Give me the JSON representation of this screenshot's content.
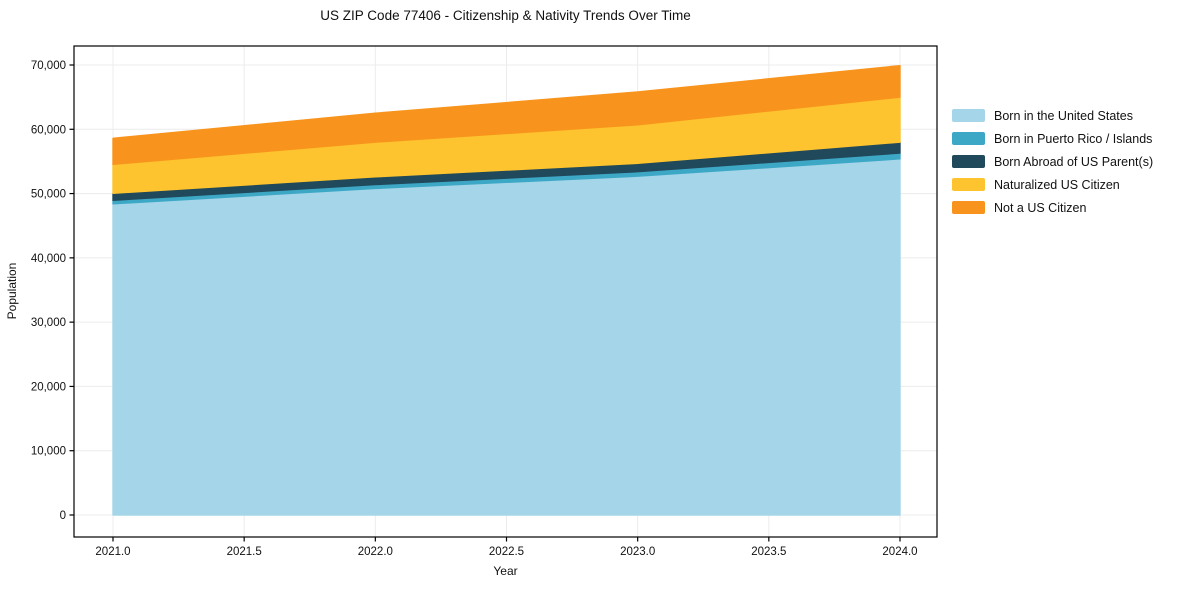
{
  "chart_data": {
    "type": "area",
    "stacked": true,
    "title": "US ZIP Code 77406 - Citizenship & Nativity Trends Over Time",
    "xlabel": "Year",
    "ylabel": "Population",
    "x": [
      2021,
      2022,
      2023,
      2024
    ],
    "series": [
      {
        "name": "Born in the United States",
        "color": "#a5d5e8",
        "values": [
          48400,
          50800,
          52700,
          55400
        ]
      },
      {
        "name": "Born in Puerto Rico / Islands",
        "color": "#3da8c6",
        "values": [
          550,
          600,
          700,
          900
        ]
      },
      {
        "name": "Born Abroad of US Parent(s)",
        "color": "#20495b",
        "values": [
          1100,
          1200,
          1300,
          1700
        ]
      },
      {
        "name": "Naturalized US Citizen",
        "color": "#fdc42f",
        "values": [
          4500,
          5400,
          6000,
          7000
        ]
      },
      {
        "name": "Not a US Citizen",
        "color": "#f8941d",
        "values": [
          4050,
          4500,
          5100,
          4900
        ]
      }
    ],
    "x_tick_values": [
      2021.0,
      2021.5,
      2022.0,
      2022.5,
      2023.0,
      2023.5,
      2024.0
    ],
    "x_tick_labels": [
      "2021.0",
      "2021.5",
      "2022.0",
      "2022.5",
      "2023.0",
      "2023.5",
      "2024.0"
    ],
    "y_tick_values": [
      0,
      10000,
      20000,
      30000,
      40000,
      50000,
      60000,
      70000
    ],
    "y_tick_labels": [
      "0",
      "10,000",
      "20,000",
      "30,000",
      "40,000",
      "50,000",
      "60,000",
      "70,000"
    ],
    "ylim": [
      0,
      70000
    ],
    "grid": true,
    "legend_position": "right-outside",
    "colors": {
      "grid": "#ececec",
      "spine": "#000000",
      "tick_text": "#111111"
    }
  }
}
